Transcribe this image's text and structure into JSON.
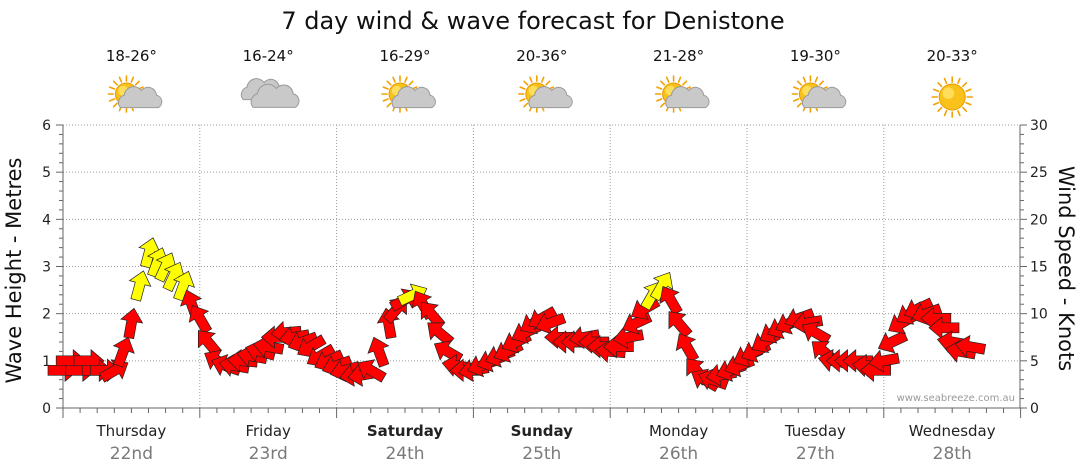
{
  "title": "7 day wind & wave forecast for Denistone",
  "credit": "www.seabreeze.com.au",
  "colors": {
    "wind_strong": "#ffff00",
    "wind_normal": "#ff0000",
    "arrow_stroke": "#222222"
  },
  "days": [
    {
      "name": "Thursday",
      "date": "22nd",
      "temp": "18-26°",
      "icon": "sun-cloud-icon",
      "bold": false
    },
    {
      "name": "Friday",
      "date": "23rd",
      "temp": "16-24°",
      "icon": "cloud-icon",
      "bold": false
    },
    {
      "name": "Saturday",
      "date": "24th",
      "temp": "16-29°",
      "icon": "sun-cloud-icon",
      "bold": true
    },
    {
      "name": "Sunday",
      "date": "25th",
      "temp": "20-36°",
      "icon": "sun-cloud-icon",
      "bold": true
    },
    {
      "name": "Monday",
      "date": "26th",
      "temp": "21-28°",
      "icon": "sun-cloud-icon",
      "bold": false
    },
    {
      "name": "Tuesday",
      "date": "27th",
      "temp": "19-30°",
      "icon": "sun-cloud-icon",
      "bold": false
    },
    {
      "name": "Wednesday",
      "date": "28th",
      "temp": "20-33°",
      "icon": "sun-icon",
      "bold": false
    }
  ],
  "chart_data": {
    "type": "line",
    "title": "7 day wind & wave forecast for Denistone",
    "x_unit": "day (0 = start of Thursday 22nd)",
    "ylabel_left": "Wave Height - Metres",
    "ylabel_right": "Wind Speed - Knots",
    "ylim_left": [
      0,
      6
    ],
    "ylim_right": [
      0,
      30
    ],
    "yticks_left": [
      0,
      1,
      2,
      3,
      4,
      5,
      6
    ],
    "yticks_right": [
      0,
      5,
      10,
      15,
      20,
      25,
      30
    ],
    "grid": true,
    "series": [
      {
        "name": "Wind Speed - Knots",
        "axis": "right",
        "marker": "arrow",
        "points": [
          {
            "x": 0.0,
            "y": 4.0,
            "dir": 90
          },
          {
            "x": 0.06,
            "y": 5.0,
            "dir": 90
          },
          {
            "x": 0.13,
            "y": 4.0,
            "dir": 90
          },
          {
            "x": 0.19,
            "y": 5.0,
            "dir": 90
          },
          {
            "x": 0.25,
            "y": 4.0,
            "dir": 90
          },
          {
            "x": 0.31,
            "y": 4.0,
            "dir": 90
          },
          {
            "x": 0.38,
            "y": 4.0,
            "dir": 60
          },
          {
            "x": 0.44,
            "y": 6.0,
            "dir": 20
          },
          {
            "x": 0.5,
            "y": 9.0,
            "dir": 10
          },
          {
            "x": 0.56,
            "y": 13.0,
            "dir": 15
          },
          {
            "x": 0.63,
            "y": 16.5,
            "dir": 15
          },
          {
            "x": 0.69,
            "y": 15.5,
            "dir": 20
          },
          {
            "x": 0.75,
            "y": 15.0,
            "dir": 25
          },
          {
            "x": 0.81,
            "y": 14.0,
            "dir": 25
          },
          {
            "x": 0.88,
            "y": 13.0,
            "dir": 20
          },
          {
            "x": 0.94,
            "y": 11.0,
            "dir": 340
          },
          {
            "x": 1.0,
            "y": 9.5,
            "dir": 330
          },
          {
            "x": 1.06,
            "y": 7.0,
            "dir": 320
          },
          {
            "x": 1.13,
            "y": 5.0,
            "dir": 300
          },
          {
            "x": 1.19,
            "y": 4.5,
            "dir": 290
          },
          {
            "x": 1.25,
            "y": 4.5,
            "dir": 280
          },
          {
            "x": 1.31,
            "y": 5.0,
            "dir": 275
          },
          {
            "x": 1.38,
            "y": 5.5,
            "dir": 280
          },
          {
            "x": 1.44,
            "y": 6.0,
            "dir": 285
          },
          {
            "x": 1.5,
            "y": 6.5,
            "dir": 280
          },
          {
            "x": 1.56,
            "y": 7.5,
            "dir": 270
          },
          {
            "x": 1.63,
            "y": 8.0,
            "dir": 265
          },
          {
            "x": 1.69,
            "y": 7.5,
            "dir": 260
          },
          {
            "x": 1.75,
            "y": 7.0,
            "dir": 250
          },
          {
            "x": 1.81,
            "y": 6.5,
            "dir": 240
          },
          {
            "x": 1.88,
            "y": 5.5,
            "dir": 240
          },
          {
            "x": 1.94,
            "y": 5.0,
            "dir": 245
          },
          {
            "x": 2.0,
            "y": 4.5,
            "dir": 250
          },
          {
            "x": 2.06,
            "y": 4.0,
            "dir": 255
          },
          {
            "x": 2.13,
            "y": 3.5,
            "dir": 260
          },
          {
            "x": 2.19,
            "y": 3.5,
            "dir": 260
          },
          {
            "x": 2.25,
            "y": 4.0,
            "dir": 300
          },
          {
            "x": 2.31,
            "y": 6.0,
            "dir": 340
          },
          {
            "x": 2.38,
            "y": 9.0,
            "dir": 350
          },
          {
            "x": 2.44,
            "y": 10.5,
            "dir": 40
          },
          {
            "x": 2.5,
            "y": 11.5,
            "dir": 60
          },
          {
            "x": 2.56,
            "y": 12.0,
            "dir": 65
          },
          {
            "x": 2.63,
            "y": 11.0,
            "dir": 330
          },
          {
            "x": 2.69,
            "y": 10.0,
            "dir": 320
          },
          {
            "x": 2.75,
            "y": 8.0,
            "dir": 310
          },
          {
            "x": 2.81,
            "y": 6.0,
            "dir": 300
          },
          {
            "x": 2.88,
            "y": 4.5,
            "dir": 280
          },
          {
            "x": 2.94,
            "y": 4.0,
            "dir": 270
          },
          {
            "x": 3.0,
            "y": 4.0,
            "dir": 260
          },
          {
            "x": 3.06,
            "y": 4.5,
            "dir": 250
          },
          {
            "x": 3.13,
            "y": 5.0,
            "dir": 250
          },
          {
            "x": 3.19,
            "y": 5.5,
            "dir": 250
          },
          {
            "x": 3.25,
            "y": 6.0,
            "dir": 245
          },
          {
            "x": 3.31,
            "y": 7.0,
            "dir": 245
          },
          {
            "x": 3.38,
            "y": 8.0,
            "dir": 245
          },
          {
            "x": 3.44,
            "y": 9.0,
            "dir": 240
          },
          {
            "x": 3.5,
            "y": 9.5,
            "dir": 240
          },
          {
            "x": 3.56,
            "y": 9.0,
            "dir": 250
          },
          {
            "x": 3.63,
            "y": 7.5,
            "dir": 270
          },
          {
            "x": 3.69,
            "y": 7.0,
            "dir": 270
          },
          {
            "x": 3.75,
            "y": 7.0,
            "dir": 270
          },
          {
            "x": 3.81,
            "y": 7.5,
            "dir": 260
          },
          {
            "x": 3.88,
            "y": 7.0,
            "dir": 270
          },
          {
            "x": 3.94,
            "y": 6.5,
            "dir": 270
          },
          {
            "x": 4.0,
            "y": 6.0,
            "dir": 275
          },
          {
            "x": 4.06,
            "y": 6.5,
            "dir": 270
          },
          {
            "x": 4.13,
            "y": 7.5,
            "dir": 260
          },
          {
            "x": 4.19,
            "y": 9.0,
            "dir": 245
          },
          {
            "x": 4.25,
            "y": 10.5,
            "dir": 240
          },
          {
            "x": 4.31,
            "y": 12.0,
            "dir": 30
          },
          {
            "x": 4.38,
            "y": 13.0,
            "dir": 30
          },
          {
            "x": 4.44,
            "y": 11.5,
            "dir": 330
          },
          {
            "x": 4.5,
            "y": 9.0,
            "dir": 320
          },
          {
            "x": 4.56,
            "y": 6.5,
            "dir": 330
          },
          {
            "x": 4.63,
            "y": 4.0,
            "dir": 320
          },
          {
            "x": 4.69,
            "y": 3.0,
            "dir": 300
          },
          {
            "x": 4.75,
            "y": 3.0,
            "dir": 290
          },
          {
            "x": 4.81,
            "y": 3.5,
            "dir": 260
          },
          {
            "x": 4.88,
            "y": 4.0,
            "dir": 250
          },
          {
            "x": 4.94,
            "y": 4.5,
            "dir": 250
          },
          {
            "x": 5.0,
            "y": 5.5,
            "dir": 245
          },
          {
            "x": 5.06,
            "y": 6.0,
            "dir": 245
          },
          {
            "x": 5.13,
            "y": 7.0,
            "dir": 240
          },
          {
            "x": 5.19,
            "y": 8.0,
            "dir": 240
          },
          {
            "x": 5.25,
            "y": 8.5,
            "dir": 245
          },
          {
            "x": 5.31,
            "y": 9.0,
            "dir": 245
          },
          {
            "x": 5.38,
            "y": 9.5,
            "dir": 250
          },
          {
            "x": 5.44,
            "y": 9.0,
            "dir": 260
          },
          {
            "x": 5.5,
            "y": 8.0,
            "dir": 300
          },
          {
            "x": 5.56,
            "y": 6.0,
            "dir": 310
          },
          {
            "x": 5.63,
            "y": 5.0,
            "dir": 280
          },
          {
            "x": 5.69,
            "y": 5.0,
            "dir": 270
          },
          {
            "x": 5.75,
            "y": 5.0,
            "dir": 270
          },
          {
            "x": 5.81,
            "y": 5.0,
            "dir": 270
          },
          {
            "x": 5.88,
            "y": 4.5,
            "dir": 275
          },
          {
            "x": 5.94,
            "y": 4.0,
            "dir": 270
          },
          {
            "x": 6.0,
            "y": 5.0,
            "dir": 260
          },
          {
            "x": 6.06,
            "y": 7.0,
            "dir": 245
          },
          {
            "x": 6.13,
            "y": 9.0,
            "dir": 240
          },
          {
            "x": 6.19,
            "y": 10.0,
            "dir": 240
          },
          {
            "x": 6.25,
            "y": 10.5,
            "dir": 245
          },
          {
            "x": 6.31,
            "y": 10.0,
            "dir": 250
          },
          {
            "x": 6.38,
            "y": 9.5,
            "dir": 270
          },
          {
            "x": 6.44,
            "y": 8.5,
            "dir": 270
          },
          {
            "x": 6.5,
            "y": 7.0,
            "dir": 280
          },
          {
            "x": 6.56,
            "y": 6.0,
            "dir": 280
          },
          {
            "x": 6.63,
            "y": 6.5,
            "dir": 280
          }
        ]
      }
    ]
  }
}
